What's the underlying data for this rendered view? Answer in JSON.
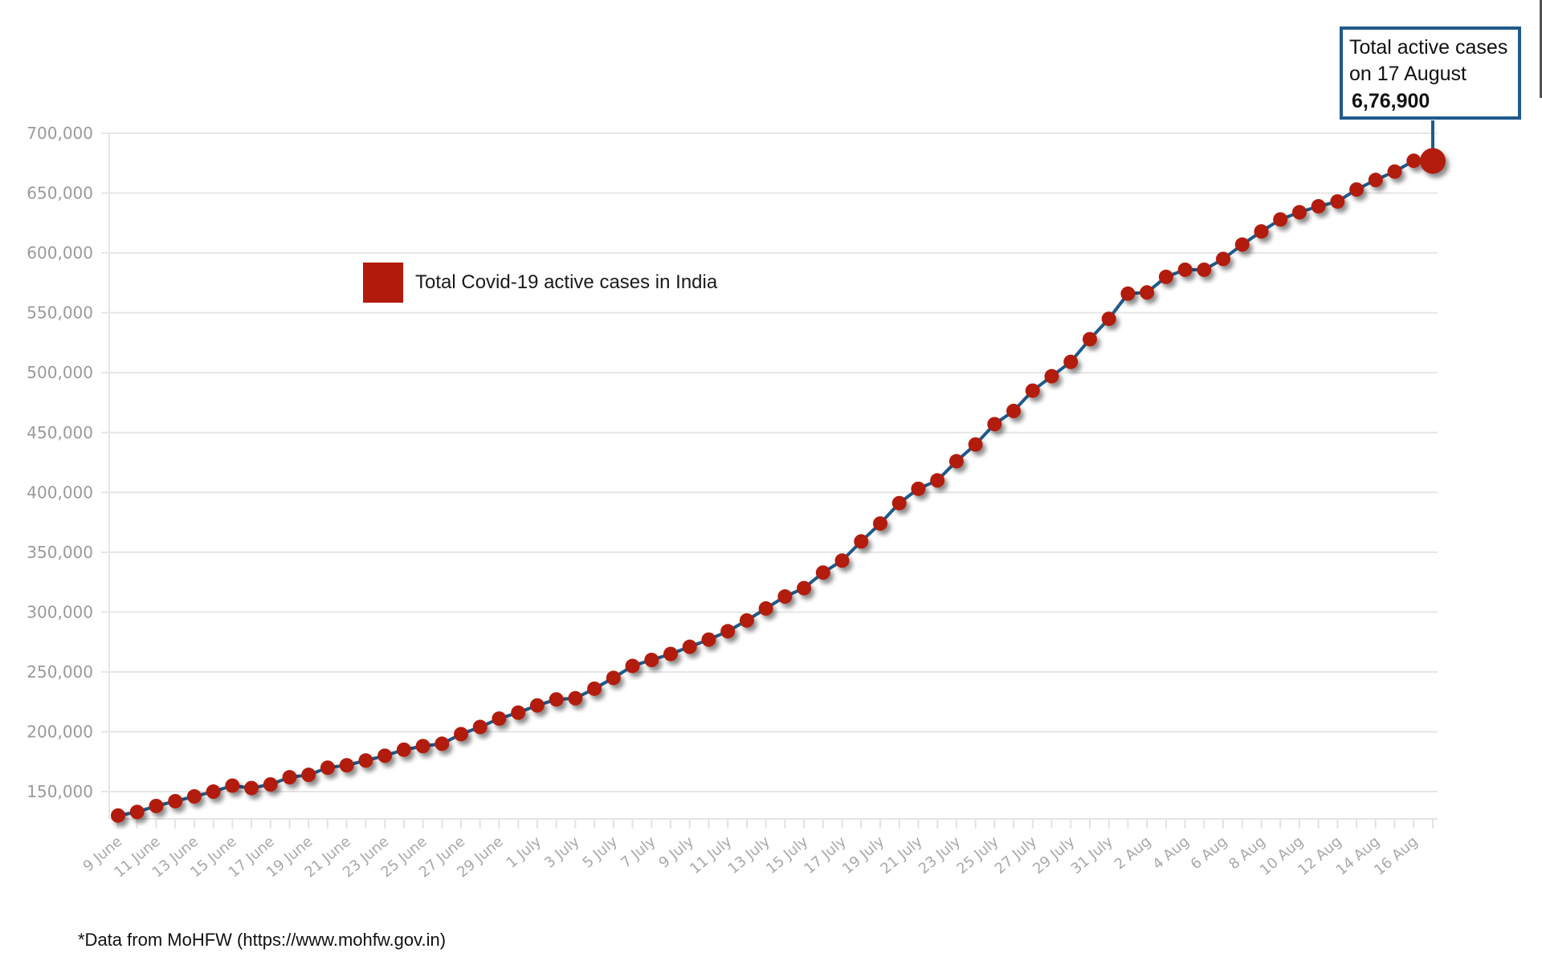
{
  "legend": {
    "label": "Total Covid-19 active cases in India",
    "color": "#b21b0c"
  },
  "callout": {
    "line1": "Total active cases",
    "line2": "on 17 August",
    "value": "6,76,900",
    "border_color": "#1f5a8c"
  },
  "footnote": "*Data from MoHFW (https://www.mohfw.gov.in)",
  "colors": {
    "marker": "#b21b0c",
    "line": "#1f5a8c",
    "grid": "#e6e6e6",
    "tick_text": "#9a9a9a"
  },
  "chart_data": {
    "type": "line",
    "title": "",
    "xlabel": "",
    "ylabel": "",
    "ylim": [
      130000,
      700000
    ],
    "grid": true,
    "legend_position": "upper-left inside",
    "yticks": [
      "150,000",
      "200,000",
      "250,000",
      "300,000",
      "350,000",
      "400,000",
      "450,000",
      "500,000",
      "550,000",
      "600,000",
      "650,000",
      "700,000"
    ],
    "xtick_labels": [
      "9 June",
      "11 June",
      "13 June",
      "15 June",
      "17 June",
      "19 June",
      "21 June",
      "23 June",
      "25 June",
      "27 June",
      "29 June",
      "1 July",
      "3 July",
      "5 July",
      "7 July",
      "9 July",
      "11 July",
      "13 July",
      "15 July",
      "17 July",
      "19 July",
      "21 July",
      "23 July",
      "25 July",
      "27 July",
      "29 July",
      "31 July",
      "2 Aug",
      "4 Aug",
      "6 Aug",
      "8 Aug",
      "10 Aug",
      "12 Aug",
      "14 Aug",
      "16 Aug"
    ],
    "x": [
      "9 June",
      "10 June",
      "11 June",
      "12 June",
      "13 June",
      "14 June",
      "15 June",
      "16 June",
      "17 June",
      "18 June",
      "19 June",
      "20 June",
      "21 June",
      "22 June",
      "23 June",
      "24 June",
      "25 June",
      "26 June",
      "27 June",
      "28 June",
      "29 June",
      "30 June",
      "1 July",
      "2 July",
      "3 July",
      "4 July",
      "5 July",
      "6 July",
      "7 July",
      "8 July",
      "9 July",
      "10 July",
      "11 July",
      "12 July",
      "13 July",
      "14 July",
      "15 July",
      "16 July",
      "17 July",
      "18 July",
      "19 July",
      "20 July",
      "21 July",
      "22 July",
      "23 July",
      "24 July",
      "25 July",
      "26 July",
      "27 July",
      "28 July",
      "29 July",
      "30 July",
      "31 July",
      "1 Aug",
      "2 Aug",
      "3 Aug",
      "4 Aug",
      "5 Aug",
      "6 Aug",
      "7 Aug",
      "8 Aug",
      "9 Aug",
      "10 Aug",
      "11 Aug",
      "12 Aug",
      "13 Aug",
      "14 Aug",
      "15 Aug",
      "16 Aug",
      "17 Aug"
    ],
    "series": [
      {
        "name": "Total Covid-19 active cases in India",
        "values": [
          130000,
          133000,
          138000,
          142000,
          146000,
          150000,
          155000,
          153000,
          156000,
          162000,
          164000,
          170000,
          172000,
          176000,
          180000,
          185000,
          188000,
          190000,
          198000,
          204000,
          211000,
          216000,
          222000,
          227000,
          228000,
          236000,
          245000,
          255000,
          260000,
          265000,
          271000,
          277000,
          284000,
          293000,
          303000,
          313000,
          320000,
          333000,
          343000,
          359000,
          374000,
          391000,
          403000,
          410000,
          426000,
          440000,
          457000,
          468000,
          485000,
          497000,
          509000,
          528000,
          545000,
          566000,
          567000,
          580000,
          586000,
          586000,
          595000,
          607000,
          618000,
          628000,
          634000,
          639000,
          643000,
          653000,
          661000,
          668000,
          677000,
          676900
        ]
      }
    ],
    "annotations": [
      {
        "x": "17 Aug",
        "text": "Total active cases on 17 August 6,76,900"
      }
    ]
  }
}
